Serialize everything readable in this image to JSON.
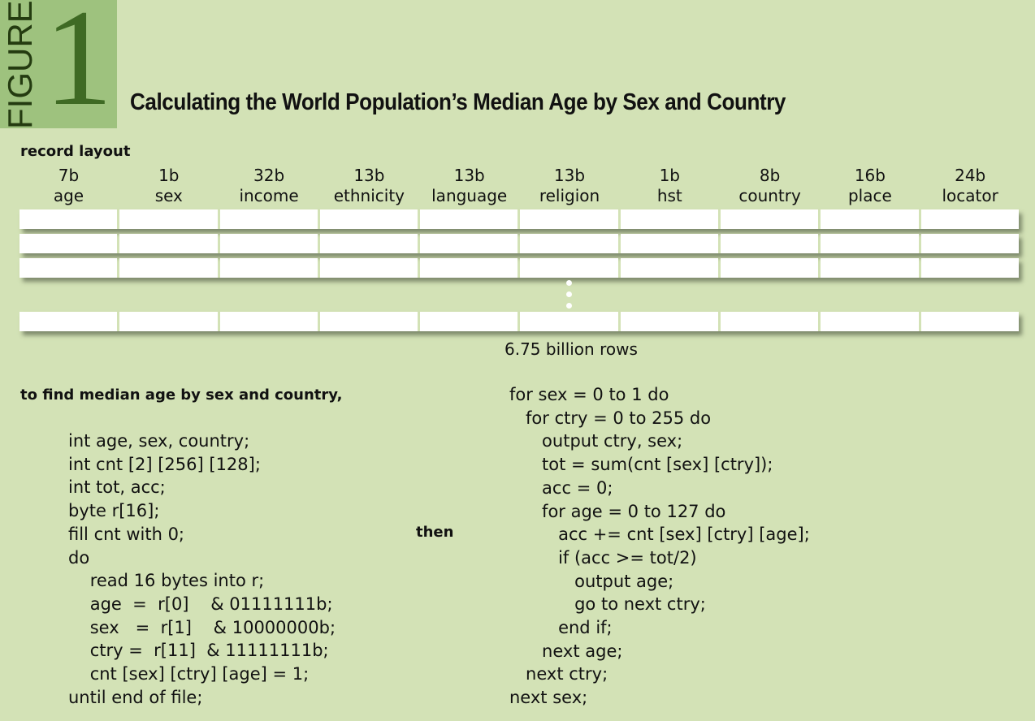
{
  "figure": {
    "word": "FIGURE",
    "number": "1"
  },
  "title": "Calculating the World Population’s Median Age by Sex and Country",
  "record_layout": {
    "label": "record layout",
    "columns": [
      {
        "size": "7b",
        "name": "age"
      },
      {
        "size": "1b",
        "name": "sex"
      },
      {
        "size": "32b",
        "name": "income"
      },
      {
        "size": "13b",
        "name": "ethnicity"
      },
      {
        "size": "13b",
        "name": "language"
      },
      {
        "size": "13b",
        "name": "religion"
      },
      {
        "size": "1b",
        "name": "hst"
      },
      {
        "size": "8b",
        "name": "country"
      },
      {
        "size": "16b",
        "name": "place"
      },
      {
        "size": "24b",
        "name": "locator"
      }
    ],
    "rows_caption": "6.75 billion rows"
  },
  "find_label": "to find median age by sex and country,",
  "then_label": "then",
  "code_left": [
    "int age, sex, country;",
    "int cnt [2] [256] [128];",
    "int tot, acc;",
    "byte r[16];",
    "fill cnt with 0;",
    "do",
    "    read 16 bytes into r;",
    "    age  =  r[0]    & 01111111b;",
    "    sex   =  r[1]    & 10000000b;",
    "    ctry =  r[11]  & 11111111b;",
    "    cnt [sex] [ctry] [age] = 1;",
    "until end of file;"
  ],
  "code_right": [
    "for sex = 0 to 1 do",
    "   for ctry = 0 to 255 do",
    "      output ctry, sex;",
    "      tot = sum(cnt [sex] [ctry]);",
    "      acc = 0;",
    "      for age = 0 to 127 do",
    "         acc += cnt [sex] [ctry] [age];",
    "         if (acc >= tot/2)",
    "            output age;",
    "            go to next ctry;",
    "         end if;",
    "      next age;",
    "   next ctry;",
    "next sex;"
  ]
}
